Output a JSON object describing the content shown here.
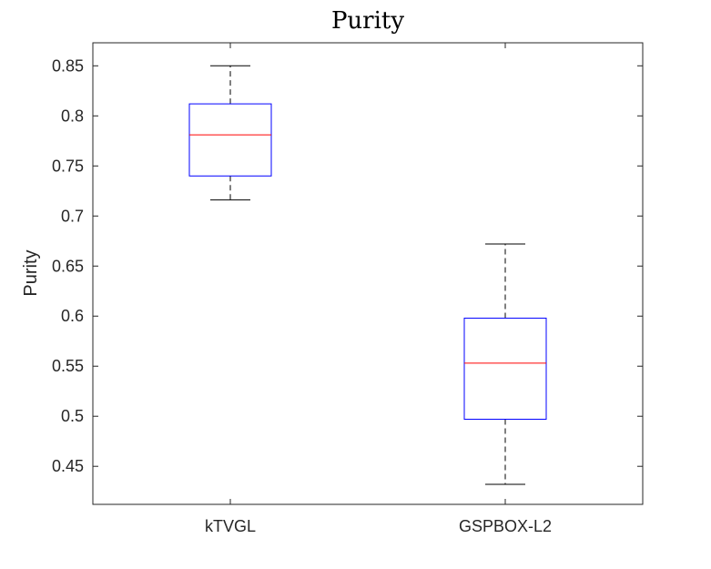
{
  "chart_data": {
    "type": "box",
    "title": "Purity",
    "xlabel": "",
    "ylabel": "Purity",
    "ylim": [
      0.412,
      0.873
    ],
    "yticks": [
      0.45,
      0.5,
      0.55,
      0.6,
      0.65,
      0.7,
      0.75,
      0.8,
      0.85
    ],
    "ytick_labels": [
      "0.45",
      "0.5",
      "0.55",
      "0.6",
      "0.65",
      "0.7",
      "0.75",
      "0.8",
      "0.85"
    ],
    "categories": [
      "kTVGL",
      "GSPBOX-L2"
    ],
    "boxes": [
      {
        "category": "kTVGL",
        "min": 0.716,
        "q1": 0.74,
        "median": 0.781,
        "q3": 0.812,
        "max": 0.85
      },
      {
        "category": "GSPBOX-L2",
        "min": 0.432,
        "q1": 0.497,
        "median": 0.553,
        "q3": 0.598,
        "max": 0.672
      }
    ],
    "grid": false,
    "colors": {
      "box": "#0000ff",
      "median": "#ff0000",
      "whisker": "#000000",
      "axis": "#262626"
    }
  }
}
